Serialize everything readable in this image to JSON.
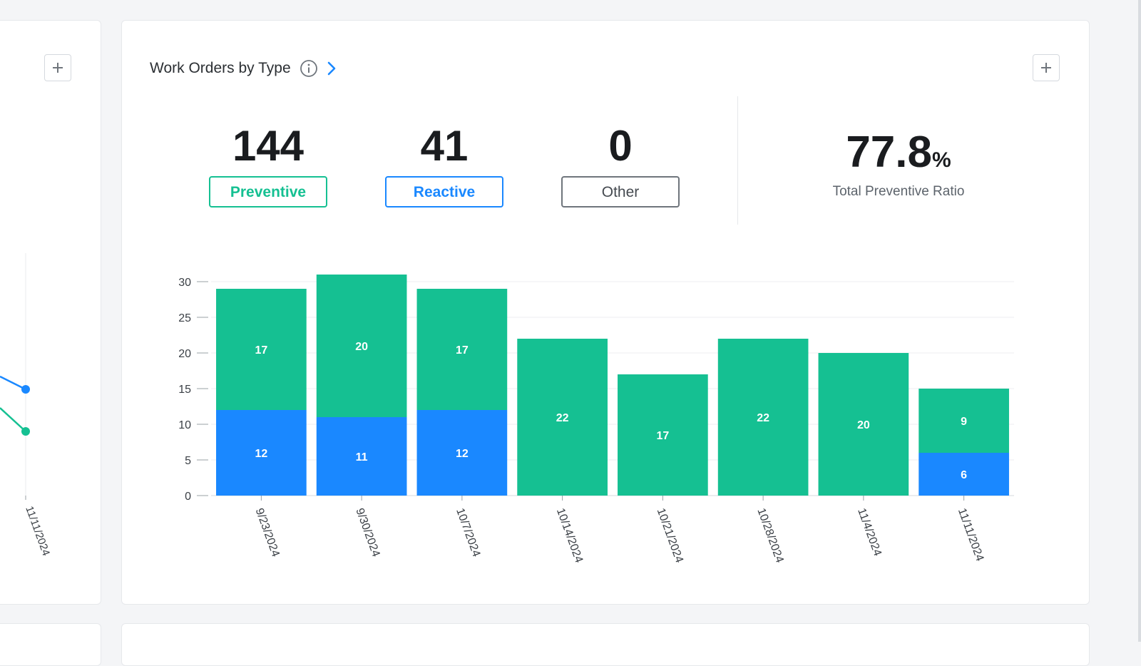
{
  "widget": {
    "title": "Work Orders by Type",
    "info_icon": "info-circle-icon",
    "chevron_icon": "chevron-right-icon",
    "add_icon": "plus-icon"
  },
  "stats": {
    "preventive": {
      "value": "144",
      "label": "Preventive",
      "color": "#15c092"
    },
    "reactive": {
      "value": "41",
      "label": "Reactive",
      "color": "#1a88ff"
    },
    "other": {
      "value": "0",
      "label": "Other",
      "color": "#6f757c"
    }
  },
  "ratio": {
    "value": "77.8",
    "unit": "%",
    "label": "Total Preventive Ratio"
  },
  "left_widget": {
    "x_tick": "11/11/2024",
    "series_colors": [
      "#1a88ff",
      "#15c092"
    ]
  },
  "chart_data": {
    "type": "bar",
    "stacked": true,
    "categories": [
      "9/23/2024",
      "9/30/2024",
      "10/7/2024",
      "10/14/2024",
      "10/21/2024",
      "10/28/2024",
      "11/4/2024",
      "11/11/2024"
    ],
    "series": [
      {
        "values": [
          12,
          11,
          12,
          0,
          0,
          0,
          0,
          6
        ],
        "color": "#1a88ff"
      },
      {
        "values": [
          17,
          20,
          17,
          22,
          17,
          22,
          20,
          9
        ],
        "color": "#15c092"
      }
    ],
    "ylim": [
      0,
      31
    ],
    "yticks": [
      0,
      5,
      10,
      15,
      20,
      25,
      30
    ],
    "grid": true
  }
}
